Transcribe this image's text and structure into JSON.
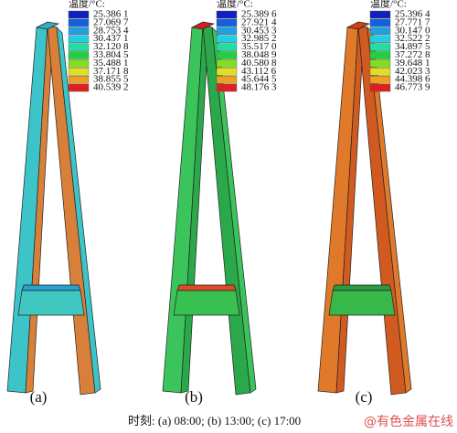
{
  "legend_colors": [
    "#1020c0",
    "#1060e0",
    "#20a0e0",
    "#20d0e0",
    "#20e0a0",
    "#20d040",
    "#80e020",
    "#e0e020",
    "#f0a020",
    "#e02020"
  ],
  "panels": [
    {
      "label": "(a)",
      "legend": {
        "title": "温度/°C:",
        "values": [
          "25.386 1",
          "27.069 7",
          "28.753 4",
          "30.437 1",
          "32.120 8",
          "33.804 5",
          "35.488 1",
          "37.171 8",
          "38.855 5",
          "40.539 2"
        ]
      }
    },
    {
      "label": "(b)",
      "legend": {
        "title": "温度/°C:",
        "values": [
          "25.389 6",
          "27.921 4",
          "30.453 3",
          "32.985 2",
          "35.517 0",
          "38.048 9",
          "40.580 8",
          "43.112 6",
          "45.644 5",
          "48.176 3"
        ]
      }
    },
    {
      "label": "(c)",
      "legend": {
        "title": "温度/°C:",
        "values": [
          "25.396 4",
          "27.771 7",
          "30.147 0",
          "32.522 2",
          "34.897 5",
          "37.272 8",
          "39.648 1",
          "42.023 3",
          "44.398 6",
          "46.773 9"
        ]
      }
    }
  ],
  "caption": "时刻: (a) 08:00; (b) 13:00; (c) 17:00",
  "watermark": "@有色金属在线"
}
